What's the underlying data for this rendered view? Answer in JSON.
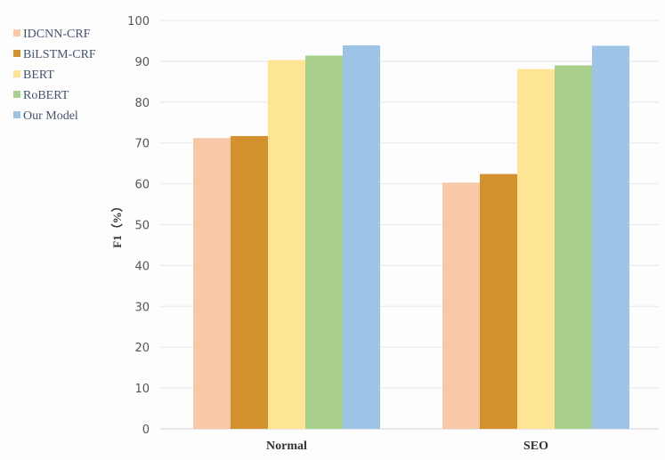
{
  "chart_data": {
    "type": "bar",
    "title": "",
    "xlabel": "",
    "ylabel": "F1（%）",
    "ylim": [
      0,
      100
    ],
    "yticks": [
      0,
      10,
      20,
      30,
      40,
      50,
      60,
      70,
      80,
      90,
      100
    ],
    "grid": true,
    "legend_position": "top-left",
    "categories": [
      "Normal",
      "SEO"
    ],
    "series": [
      {
        "name": "IDCNN-CRF",
        "color": "#f8c9a9",
        "values": [
          71.2,
          60.3
        ]
      },
      {
        "name": "BiLSTM-CRF",
        "color": "#d3922e",
        "values": [
          71.7,
          62.4
        ]
      },
      {
        "name": "BERT",
        "color": "#fee495",
        "values": [
          90.3,
          88.1
        ]
      },
      {
        "name": "RoBERT",
        "color": "#a8d08c",
        "values": [
          91.4,
          89.0
        ]
      },
      {
        "name": "Our Model",
        "color": "#9dc3e6",
        "values": [
          93.9,
          93.8
        ]
      }
    ]
  }
}
